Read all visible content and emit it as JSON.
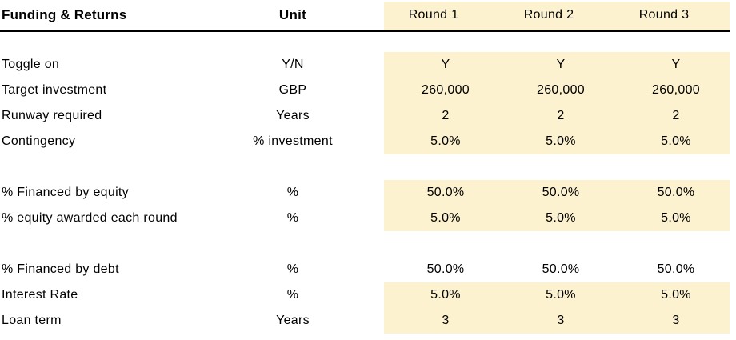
{
  "table": {
    "title": "Funding & Returns",
    "unit_header": "Unit",
    "round_headers": [
      "Round 1",
      "Round 2",
      "Round 3"
    ],
    "rows": [
      {
        "label": "Toggle on",
        "unit": "Y/N",
        "values": [
          "Y",
          "Y",
          "Y"
        ],
        "highlight": true
      },
      {
        "label": "Target investment",
        "unit": "GBP",
        "values": [
          "260,000",
          "260,000",
          "260,000"
        ],
        "highlight": true
      },
      {
        "label": "Runway required",
        "unit": "Years",
        "values": [
          "2",
          "2",
          "2"
        ],
        "highlight": true
      },
      {
        "label": "Contingency",
        "unit": "% investment",
        "values": [
          "5.0%",
          "5.0%",
          "5.0%"
        ],
        "highlight": true
      },
      {
        "label": "% Financed by equity",
        "unit": "%",
        "values": [
          "50.0%",
          "50.0%",
          "50.0%"
        ],
        "highlight": true
      },
      {
        "label": "% equity awarded each round",
        "unit": "%",
        "values": [
          "5.0%",
          "5.0%",
          "5.0%"
        ],
        "highlight": true
      },
      {
        "label": "% Financed by debt",
        "unit": "%",
        "values": [
          "50.0%",
          "50.0%",
          "50.0%"
        ],
        "highlight": false
      },
      {
        "label": "Interest Rate",
        "unit": "%",
        "values": [
          "5.0%",
          "5.0%",
          "5.0%"
        ],
        "highlight": true
      },
      {
        "label": "Loan term",
        "unit": "Years",
        "values": [
          "3",
          "3",
          "3"
        ],
        "highlight": true
      }
    ]
  },
  "colors": {
    "highlight_fill": "#FDF2CF",
    "header_underline": "#000000",
    "text": "#000000",
    "background": "#FFFFFF"
  }
}
